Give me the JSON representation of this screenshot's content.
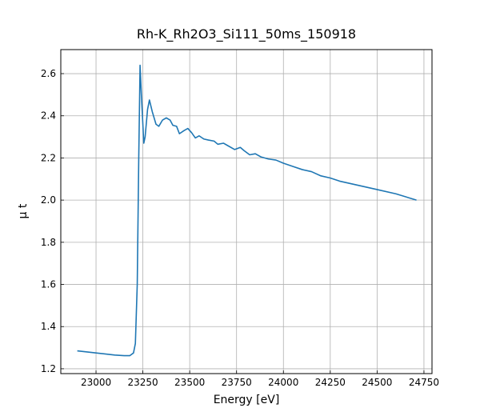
{
  "chart_data": {
    "type": "line",
    "title": "Rh-K_Rh2O3_Si111_50ms_150918",
    "x_label": "Energy [eV]",
    "y_label": "μ t",
    "color": "#1f77b4",
    "grid": true,
    "x": [
      22900,
      23000,
      23100,
      23150,
      23180,
      23200,
      23210,
      23220,
      23228,
      23235,
      23242,
      23255,
      23262,
      23275,
      23285,
      23300,
      23320,
      23335,
      23355,
      23375,
      23395,
      23410,
      23430,
      23445,
      23470,
      23490,
      23510,
      23530,
      23550,
      23575,
      23600,
      23630,
      23650,
      23680,
      23700,
      23740,
      23770,
      23790,
      23820,
      23850,
      23880,
      23920,
      23960,
      24000,
      24050,
      24100,
      24150,
      24200,
      24250,
      24300,
      24400,
      24500,
      24600,
      24710
    ],
    "values": [
      1.285,
      1.275,
      1.265,
      1.262,
      1.262,
      1.275,
      1.32,
      1.6,
      2.2,
      2.64,
      2.5,
      2.27,
      2.3,
      2.43,
      2.475,
      2.42,
      2.36,
      2.35,
      2.38,
      2.39,
      2.38,
      2.355,
      2.35,
      2.315,
      2.33,
      2.34,
      2.32,
      2.295,
      2.305,
      2.29,
      2.285,
      2.28,
      2.265,
      2.27,
      2.26,
      2.24,
      2.25,
      2.235,
      2.215,
      2.22,
      2.205,
      2.195,
      2.19,
      2.175,
      2.16,
      2.145,
      2.135,
      2.115,
      2.105,
      2.09,
      2.07,
      2.05,
      2.03,
      2.0
    ],
    "xlim": [
      22812,
      24793
    ],
    "xticks": [
      23000,
      23250,
      23500,
      23750,
      24000,
      24250,
      24500,
      24750
    ],
    "ylim": [
      1.177,
      2.714
    ],
    "yticks": [
      1.2,
      1.4,
      1.6,
      1.8,
      {
        "value": 2,
        "label": "2.0"
      },
      2.2,
      2.4,
      2.6
    ]
  }
}
